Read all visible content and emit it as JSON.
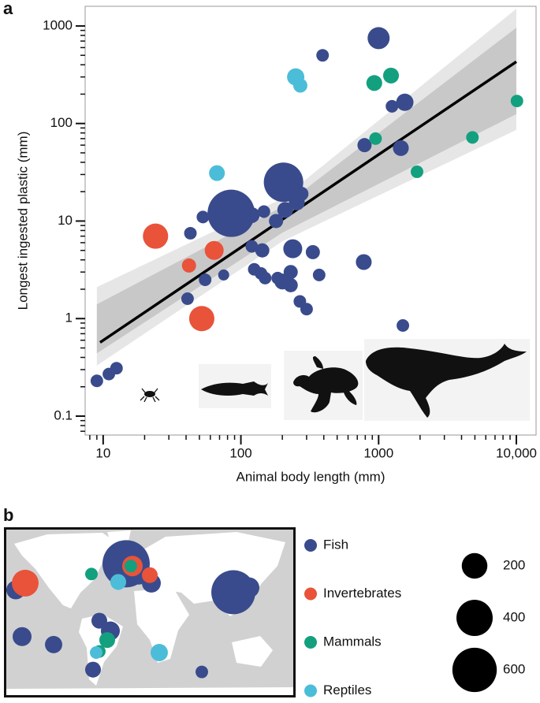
{
  "chart_data": [
    {
      "type": "scatter",
      "panel": "a",
      "x_label": "Animal body length (mm)",
      "y_label": "Longest ingested plastic (mm)",
      "log_x": true,
      "log_y": true,
      "xlim": [
        7.4,
        13900
      ],
      "ylim": [
        0.064,
        1590
      ],
      "xticks": [
        10,
        100,
        1000,
        {
          "value": 10000,
          "label": "10,000"
        }
      ],
      "yticks": [
        0.1,
        1,
        10,
        100,
        1000
      ],
      "xminorticks": [
        8,
        9,
        20,
        30,
        40,
        50,
        60,
        70,
        80,
        90,
        200,
        300,
        400,
        500,
        600,
        700,
        800,
        900,
        2000,
        3000,
        4000,
        5000,
        6000,
        7000,
        8000,
        9000
      ],
      "yminorticks": [
        0.07,
        0.08,
        0.09,
        0.2,
        0.3,
        0.4,
        0.5,
        0.6,
        0.7,
        0.8,
        0.9,
        2,
        3,
        4,
        5,
        6,
        7,
        8,
        9,
        20,
        30,
        40,
        50,
        60,
        70,
        80,
        90,
        200,
        300,
        400,
        500,
        600,
        700,
        800,
        900
      ],
      "bands": [
        {
          "color": "#e6e6e6",
          "x": [
            9,
            200,
            10000
          ],
          "lower": [
            0.33,
            6.2,
            86
          ],
          "upper": [
            2.1,
            17,
            1500
          ]
        },
        {
          "color": "#c8c8c8",
          "x": [
            9,
            200,
            10000
          ],
          "lower": [
            0.44,
            7.6,
            125
          ],
          "upper": [
            1.4,
            14,
            960
          ]
        }
      ],
      "regression": {
        "color": "#000000",
        "x": [
          9.5,
          10000
        ],
        "y": [
          0.57,
          430
        ]
      },
      "series": [
        {
          "color": "#394b8c",
          "x": [
            9,
            11,
            12.5,
            43,
            41,
            55,
            75,
            85,
            53,
            120,
            147,
            204,
            120,
            143,
            125,
            140,
            150,
            185,
            200,
            238,
            230,
            230,
            268,
            300,
            333,
            370,
            210,
            275,
            255,
            180,
            392,
            1000,
            1250,
            1550,
            790,
            1450,
            780,
            1500
          ],
          "values": [
            0.23,
            0.27,
            0.31,
            7.5,
            1.6,
            2.5,
            2.8,
            12,
            11,
            11.5,
            12.5,
            25,
            5.5,
            5,
            3.2,
            2.9,
            2.6,
            2.6,
            2.4,
            5.2,
            3,
            2.2,
            1.5,
            1.25,
            4.8,
            2.8,
            13,
            19,
            15.5,
            10,
            500,
            750,
            150,
            165,
            60,
            56,
            3.8,
            0.85
          ],
          "sizes": [
            48,
            48,
            48,
            48,
            48,
            48,
            37,
            680,
            48,
            76,
            48,
            473,
            48,
            61,
            48,
            48,
            48,
            48,
            76,
            109,
            61,
            61,
            48,
            48,
            61,
            48,
            76,
            61,
            76,
            61,
            48,
            148,
            48,
            91,
            61,
            76,
            76,
            48
          ]
        },
        {
          "color": "#e8533a",
          "x": [
            24,
            42,
            64,
            52
          ],
          "values": [
            7,
            3.5,
            5,
            1
          ],
          "sizes": [
            194,
            61,
            109,
            194
          ]
        },
        {
          "color": "#13a07e",
          "x": [
            930,
            1230,
            950,
            1900,
            4800,
            10100
          ],
          "values": [
            260,
            310,
            70,
            32,
            72,
            170
          ],
          "sizes": [
            76,
            76,
            48,
            48,
            48,
            48
          ]
        },
        {
          "color": "#4cbdd8",
          "x": [
            250,
            270,
            67
          ],
          "values": [
            300,
            245,
            31
          ],
          "sizes": [
            91,
            61,
            76
          ]
        }
      ]
    },
    {
      "type": "map",
      "panel": "b",
      "lonlim": [
        -180,
        180
      ],
      "latlim": [
        -60,
        84
      ],
      "size_legend": [
        200,
        400,
        600
      ],
      "series": [
        {
          "name": "Fish",
          "color": "#394b8c",
          "lon": [
            -170,
            -162,
            -122,
            -30,
            -14,
            2,
            -64,
            -50,
            -72,
            66,
            106,
            126
          ],
          "lat": [
            31,
            -10,
            -17,
            54,
            44,
            37,
            4,
            -5,
            -39,
            -41,
            29,
            33
          ],
          "sizes": [
            109,
            109,
            91,
            680,
            109,
            109,
            76,
            109,
            76,
            48,
            590,
            128
          ]
        },
        {
          "name": "Invertebrates",
          "color": "#e8533a",
          "lon": [
            -158,
            -22,
            0
          ],
          "lat": [
            37,
            52,
            44
          ],
          "sizes": [
            218,
            128,
            76
          ]
        },
        {
          "name": "Mammals",
          "color": "#13a07e",
          "lon": [
            -74,
            -24,
            -54,
            -64
          ],
          "lat": [
            45,
            52,
            -13,
            -23
          ],
          "sizes": [
            48,
            48,
            76,
            48
          ]
        },
        {
          "name": "Reptiles",
          "color": "#4cbdd8",
          "lon": [
            -40,
            -68,
            12
          ],
          "lat": [
            38,
            -24,
            -24
          ],
          "sizes": [
            76,
            48,
            91
          ]
        }
      ]
    }
  ]
}
